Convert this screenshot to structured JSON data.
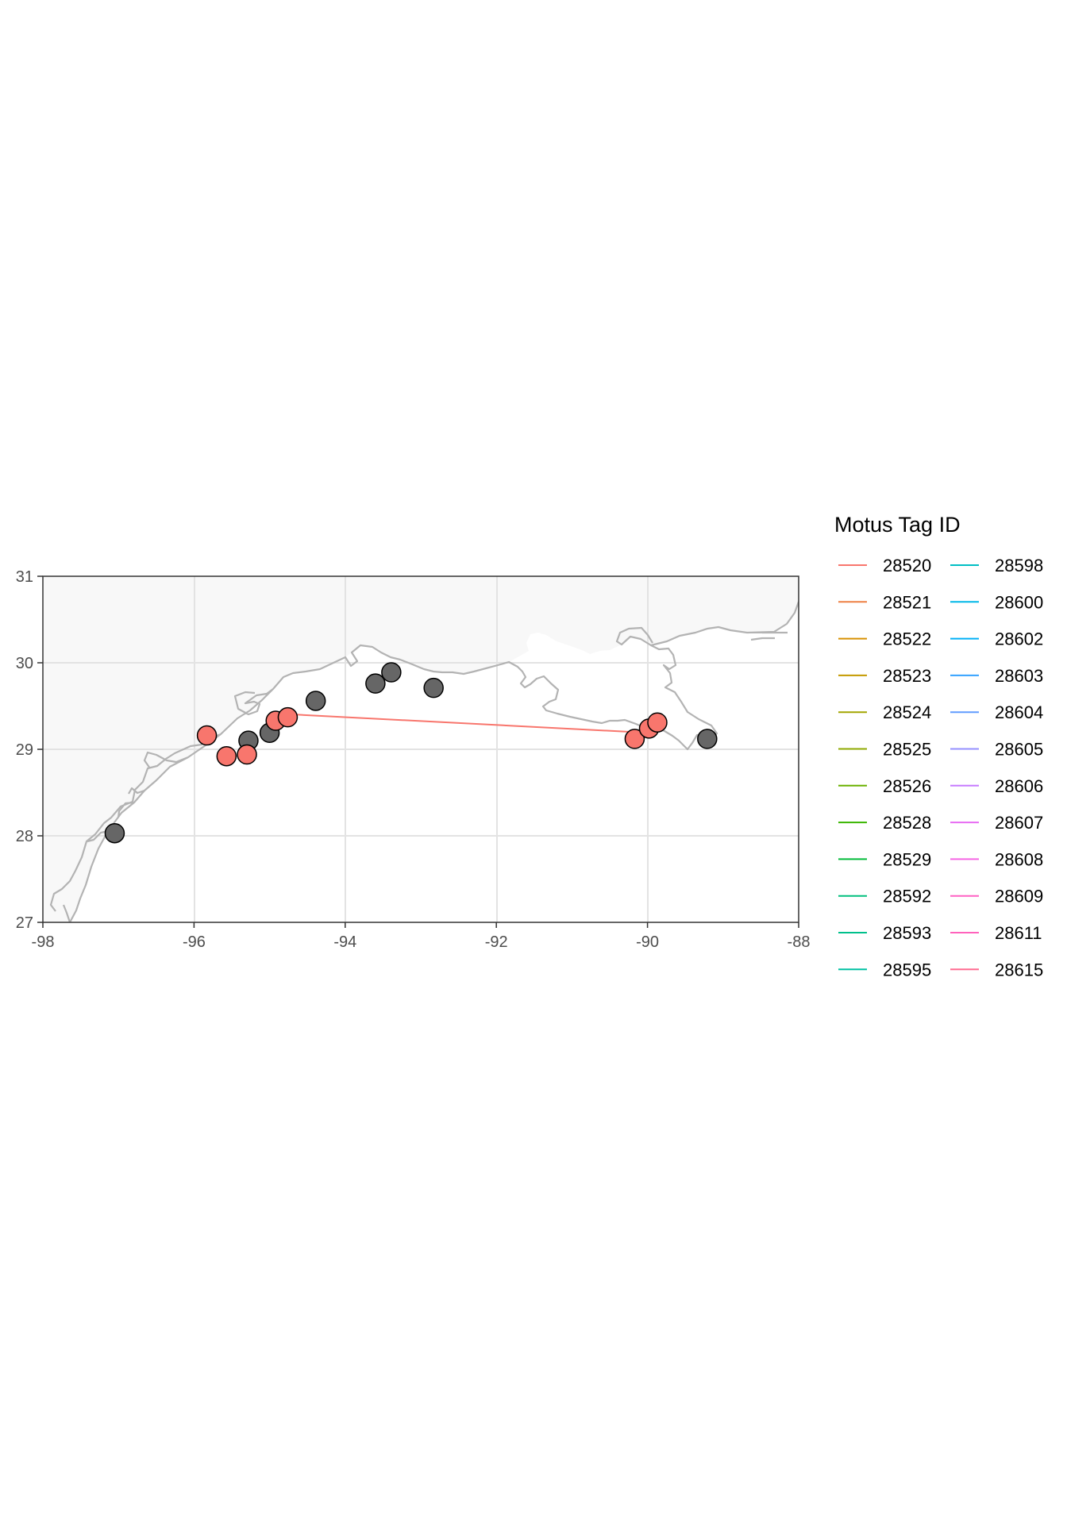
{
  "legend": {
    "title": "Motus Tag ID",
    "placement": "right",
    "entries": [
      {
        "label": "28520",
        "color": "#F8766D"
      },
      {
        "label": "28521",
        "color": "#EE8043"
      },
      {
        "label": "28522",
        "color": "#D89000"
      },
      {
        "label": "28523",
        "color": "#C49A00"
      },
      {
        "label": "28524",
        "color": "#A3A500"
      },
      {
        "label": "28525",
        "color": "#8FAA00"
      },
      {
        "label": "28526",
        "color": "#6BB100"
      },
      {
        "label": "28528",
        "color": "#39B600"
      },
      {
        "label": "28529",
        "color": "#00BA38"
      },
      {
        "label": "28592",
        "color": "#00BF7D"
      },
      {
        "label": "28593",
        "color": "#00C08B"
      },
      {
        "label": "28595",
        "color": "#00C1A3"
      },
      {
        "label": "28598",
        "color": "#00BFC4"
      },
      {
        "label": "28600",
        "color": "#00B8E7"
      },
      {
        "label": "28602",
        "color": "#00B0F6"
      },
      {
        "label": "28603",
        "color": "#35A2FF"
      },
      {
        "label": "28604",
        "color": "#619CFF"
      },
      {
        "label": "28605",
        "color": "#9590FF"
      },
      {
        "label": "28606",
        "color": "#C77CFF"
      },
      {
        "label": "28607",
        "color": "#E76BF3"
      },
      {
        "label": "28608",
        "color": "#F564E3"
      },
      {
        "label": "28609",
        "color": "#FF61C3"
      },
      {
        "label": "28611",
        "color": "#FF62BC"
      },
      {
        "label": "28615",
        "color": "#FF6C91"
      }
    ]
  },
  "chart_data": {
    "type": "scatter",
    "x_ticks": [
      "-98",
      "-96",
      "-94",
      "-92",
      "-90",
      "-88"
    ],
    "y_ticks": [
      "27",
      "28",
      "29",
      "30",
      "31"
    ],
    "xlim": [
      -98,
      -88
    ],
    "ylim": [
      27,
      31
    ],
    "grid": true,
    "colors": {
      "land": "#f8f8f8",
      "coast": "#b3b3b3",
      "grid": "#e3e3e3",
      "detected_station": "#F8766D",
      "undetected_station": "#666666",
      "track": "#F8766D"
    },
    "stations_detected": [
      {
        "lon": -95.83,
        "lat": 29.16
      },
      {
        "lon": -95.57,
        "lat": 28.92
      },
      {
        "lon": -95.3,
        "lat": 28.94
      },
      {
        "lon": -94.92,
        "lat": 29.33
      },
      {
        "lon": -94.76,
        "lat": 29.37
      },
      {
        "lon": -90.17,
        "lat": 29.12
      },
      {
        "lon": -89.98,
        "lat": 29.24
      },
      {
        "lon": -89.87,
        "lat": 29.31
      }
    ],
    "stations_undetected": [
      {
        "lon": -97.05,
        "lat": 28.03
      },
      {
        "lon": -95.28,
        "lat": 29.1
      },
      {
        "lon": -95.0,
        "lat": 29.19
      },
      {
        "lon": -94.39,
        "lat": 29.56
      },
      {
        "lon": -93.6,
        "lat": 29.76
      },
      {
        "lon": -93.39,
        "lat": 29.89
      },
      {
        "lon": -92.83,
        "lat": 29.71
      },
      {
        "lon": -89.21,
        "lat": 29.12
      }
    ],
    "tracks": [
      {
        "tag": "28520",
        "points": [
          {
            "lon": -94.85,
            "lat": 29.41
          },
          {
            "lon": -89.98,
            "lat": 29.19
          }
        ]
      }
    ]
  }
}
